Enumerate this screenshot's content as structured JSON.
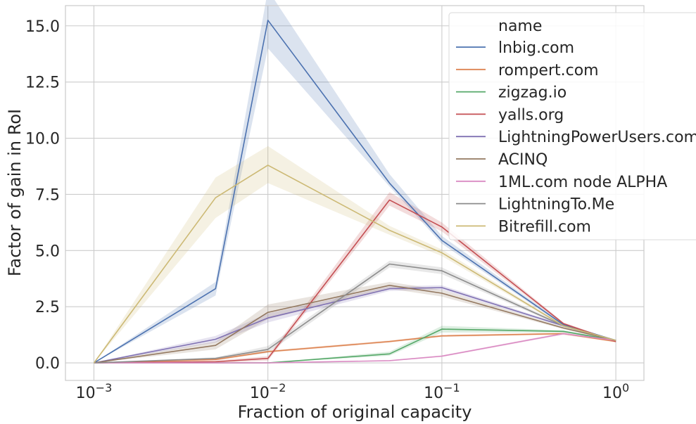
{
  "chart_data": {
    "type": "line",
    "xlabel": "Fraction of original capacity",
    "ylabel": "Factor of gain in RoI",
    "x_scale": "log",
    "xlim": [
      0.000686,
      1.45
    ],
    "ylim": [
      -0.78,
      15.9
    ],
    "grid": true,
    "x": [
      0.001,
      0.005,
      0.01,
      0.05,
      0.1,
      0.5,
      1.0
    ],
    "x_ticks": [
      {
        "value": 0.001,
        "base": "10",
        "exp": "−3"
      },
      {
        "value": 0.01,
        "base": "10",
        "exp": "−2"
      },
      {
        "value": 0.1,
        "base": "10",
        "exp": "−1"
      },
      {
        "value": 1.0,
        "base": "10",
        "exp": "0"
      }
    ],
    "y_ticks": [
      {
        "value": 0.0,
        "label": "0.0"
      },
      {
        "value": 2.5,
        "label": "2.5"
      },
      {
        "value": 5.0,
        "label": "5.0"
      },
      {
        "value": 7.5,
        "label": "7.5"
      },
      {
        "value": 10.0,
        "label": "10.0"
      },
      {
        "value": 12.5,
        "label": "12.5"
      },
      {
        "value": 15.0,
        "label": "15.0"
      }
    ],
    "legend": {
      "title": "name",
      "placement": "top-right"
    },
    "series": [
      {
        "name": "lnbig.com",
        "color": "#4c72b0",
        "values": [
          0.0,
          3.3,
          15.25,
          8.0,
          5.45,
          1.7,
          1.0
        ],
        "lower": [
          0.0,
          3.0,
          14.0,
          7.85,
          5.3,
          1.65,
          0.97
        ],
        "upper": [
          0.0,
          3.6,
          16.6,
          8.4,
          5.65,
          1.75,
          1.03
        ]
      },
      {
        "name": "rompert.com",
        "color": "#dd8452",
        "values": [
          0.0,
          0.15,
          0.5,
          0.95,
          1.2,
          1.3,
          0.95
        ],
        "lower": [
          0.0,
          0.1,
          0.45,
          0.9,
          1.15,
          1.25,
          0.92
        ],
        "upper": [
          0.0,
          0.2,
          0.55,
          1.0,
          1.25,
          1.35,
          0.98
        ]
      },
      {
        "name": "zigzag.io",
        "color": "#55a868",
        "values": [
          0.0,
          0.0,
          0.0,
          0.4,
          1.5,
          1.4,
          1.0
        ],
        "lower": [
          0.0,
          0.0,
          0.0,
          0.32,
          1.35,
          1.35,
          0.97
        ],
        "upper": [
          0.0,
          0.0,
          0.0,
          0.5,
          1.65,
          1.45,
          1.03
        ]
      },
      {
        "name": "yalls.org",
        "color": "#c44e52",
        "values": [
          0.0,
          0.05,
          0.2,
          7.25,
          6.05,
          1.75,
          0.95
        ],
        "lower": [
          0.0,
          0.0,
          0.1,
          7.0,
          5.85,
          1.7,
          0.92
        ],
        "upper": [
          0.0,
          0.1,
          0.3,
          7.6,
          6.25,
          1.8,
          0.98
        ]
      },
      {
        "name": "LightningPowerUsers.com",
        "color": "#8172b3",
        "values": [
          0.0,
          1.05,
          2.0,
          3.3,
          3.35,
          1.65,
          1.0
        ],
        "lower": [
          0.0,
          0.9,
          1.8,
          3.2,
          3.25,
          1.6,
          0.97
        ],
        "upper": [
          0.0,
          1.2,
          2.2,
          3.4,
          3.45,
          1.7,
          1.03
        ]
      },
      {
        "name": "ACINQ",
        "color": "#937860",
        "values": [
          0.0,
          0.78,
          2.25,
          3.45,
          3.1,
          1.55,
          1.0
        ],
        "lower": [
          0.0,
          0.6,
          1.95,
          3.3,
          2.95,
          1.5,
          0.97
        ],
        "upper": [
          0.0,
          0.95,
          2.6,
          3.6,
          3.25,
          1.6,
          1.03
        ]
      },
      {
        "name": "1ML.com node ALPHA",
        "color": "#da8bc3",
        "values": [
          0.0,
          0.0,
          0.0,
          0.1,
          0.3,
          1.3,
          1.0
        ],
        "lower": [
          0.0,
          0.0,
          0.0,
          0.08,
          0.26,
          1.25,
          0.97
        ],
        "upper": [
          0.0,
          0.0,
          0.0,
          0.12,
          0.34,
          1.35,
          1.03
        ]
      },
      {
        "name": "LightningTo.Me",
        "color": "#8c8c8c",
        "values": [
          0.0,
          0.2,
          0.6,
          4.4,
          4.1,
          1.65,
          1.0
        ],
        "lower": [
          0.0,
          0.15,
          0.45,
          4.25,
          3.95,
          1.6,
          0.97
        ],
        "upper": [
          0.0,
          0.25,
          0.75,
          4.55,
          4.25,
          1.7,
          1.03
        ]
      },
      {
        "name": "Bitrefill.com",
        "color": "#ccb974",
        "values": [
          0.0,
          7.35,
          8.8,
          5.9,
          4.9,
          1.65,
          1.0
        ],
        "lower": [
          0.0,
          6.45,
          8.0,
          5.7,
          4.75,
          1.6,
          0.97
        ],
        "upper": [
          0.0,
          8.25,
          9.65,
          6.1,
          5.05,
          1.7,
          1.03
        ]
      }
    ]
  }
}
